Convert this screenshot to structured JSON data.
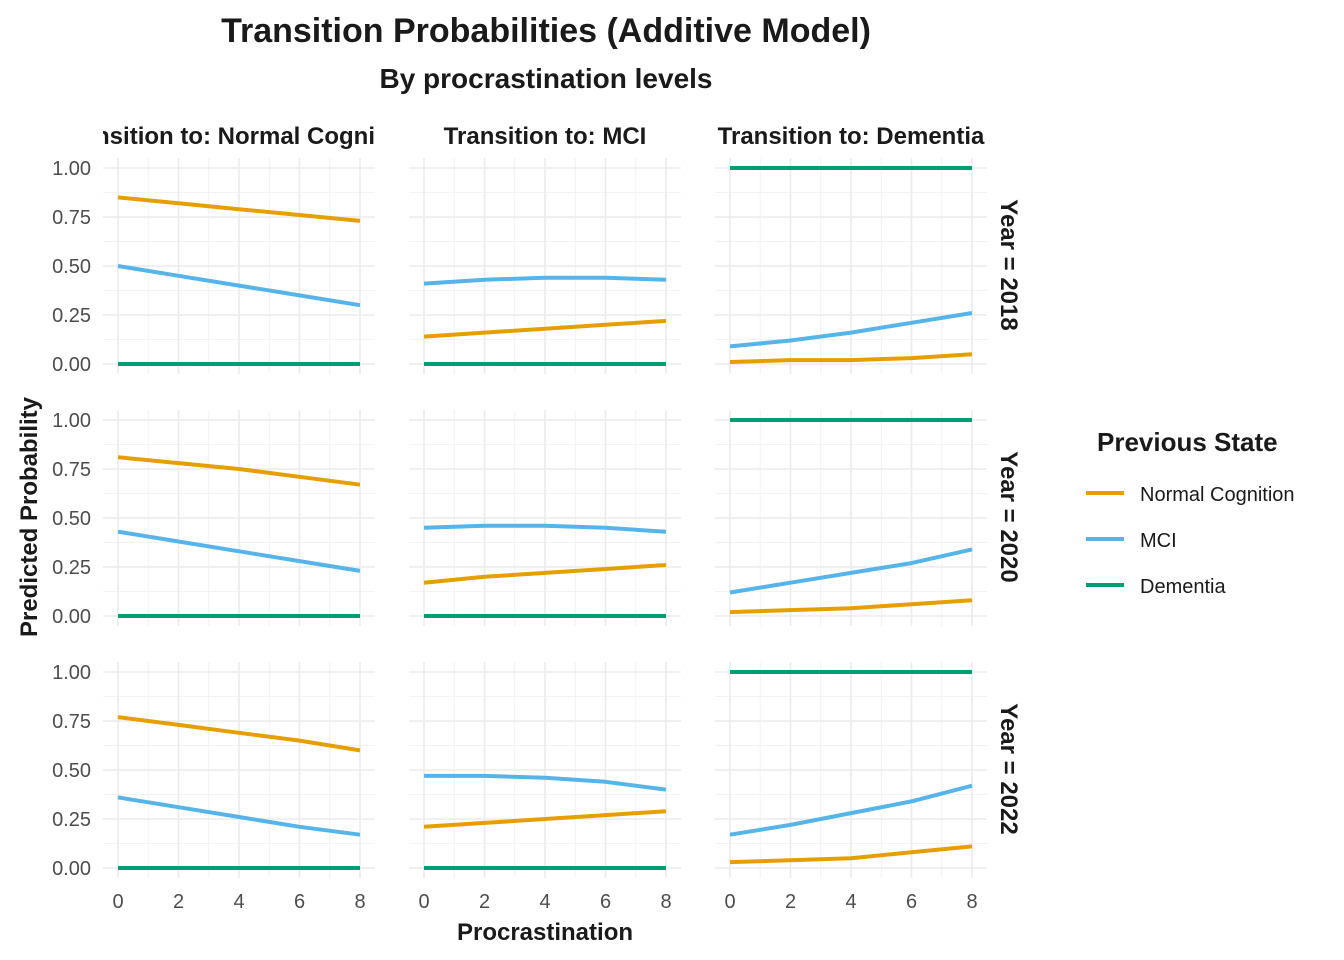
{
  "chart_data": {
    "type": "line",
    "title": "Transition Probabilities (Additive Model)",
    "subtitle": "By procrastination levels",
    "xlabel": "Procrastination",
    "ylabel": "Predicted Probability",
    "xlim": [
      0,
      8
    ],
    "ylim": [
      0,
      1
    ],
    "x_ticks": [
      "0",
      "2",
      "4",
      "6",
      "8"
    ],
    "y_ticks": [
      "0.00",
      "0.25",
      "0.50",
      "0.75",
      "1.00"
    ],
    "grid": true,
    "facet_columns": [
      "Transition to: Normal Cognition",
      "Transition to: MCI",
      "Transition to: Dementia"
    ],
    "facet_rows": [
      "Year = 2018",
      "Year = 2020",
      "Year = 2022"
    ],
    "legend": {
      "title": "Previous State",
      "position": "right",
      "items": [
        {
          "name": "Normal Cognition",
          "color": "#E69F00"
        },
        {
          "name": "MCI",
          "color": "#56B4E9"
        },
        {
          "name": "Dementia",
          "color": "#009E73"
        }
      ]
    },
    "x": [
      0,
      2,
      4,
      6,
      8
    ],
    "panels": [
      {
        "row": 0,
        "col": 0,
        "series": [
          {
            "name": "Normal Cognition",
            "values": [
              0.85,
              0.82,
              0.79,
              0.76,
              0.73
            ]
          },
          {
            "name": "MCI",
            "values": [
              0.5,
              0.45,
              0.4,
              0.35,
              0.3
            ]
          },
          {
            "name": "Dementia",
            "values": [
              0.0,
              0.0,
              0.0,
              0.0,
              0.0
            ]
          }
        ]
      },
      {
        "row": 0,
        "col": 1,
        "series": [
          {
            "name": "Normal Cognition",
            "values": [
              0.14,
              0.16,
              0.18,
              0.2,
              0.22
            ]
          },
          {
            "name": "MCI",
            "values": [
              0.41,
              0.43,
              0.44,
              0.44,
              0.43
            ]
          },
          {
            "name": "Dementia",
            "values": [
              0.0,
              0.0,
              0.0,
              0.0,
              0.0
            ]
          }
        ]
      },
      {
        "row": 0,
        "col": 2,
        "series": [
          {
            "name": "Normal Cognition",
            "values": [
              0.01,
              0.02,
              0.02,
              0.03,
              0.05
            ]
          },
          {
            "name": "MCI",
            "values": [
              0.09,
              0.12,
              0.16,
              0.21,
              0.26
            ]
          },
          {
            "name": "Dementia",
            "values": [
              1.0,
              1.0,
              1.0,
              1.0,
              1.0
            ]
          }
        ]
      },
      {
        "row": 1,
        "col": 0,
        "series": [
          {
            "name": "Normal Cognition",
            "values": [
              0.81,
              0.78,
              0.75,
              0.71,
              0.67
            ]
          },
          {
            "name": "MCI",
            "values": [
              0.43,
              0.38,
              0.33,
              0.28,
              0.23
            ]
          },
          {
            "name": "Dementia",
            "values": [
              0.0,
              0.0,
              0.0,
              0.0,
              0.0
            ]
          }
        ]
      },
      {
        "row": 1,
        "col": 1,
        "series": [
          {
            "name": "Normal Cognition",
            "values": [
              0.17,
              0.2,
              0.22,
              0.24,
              0.26
            ]
          },
          {
            "name": "MCI",
            "values": [
              0.45,
              0.46,
              0.46,
              0.45,
              0.43
            ]
          },
          {
            "name": "Dementia",
            "values": [
              0.0,
              0.0,
              0.0,
              0.0,
              0.0
            ]
          }
        ]
      },
      {
        "row": 1,
        "col": 2,
        "series": [
          {
            "name": "Normal Cognition",
            "values": [
              0.02,
              0.03,
              0.04,
              0.06,
              0.08
            ]
          },
          {
            "name": "MCI",
            "values": [
              0.12,
              0.17,
              0.22,
              0.27,
              0.34
            ]
          },
          {
            "name": "Dementia",
            "values": [
              1.0,
              1.0,
              1.0,
              1.0,
              1.0
            ]
          }
        ]
      },
      {
        "row": 2,
        "col": 0,
        "series": [
          {
            "name": "Normal Cognition",
            "values": [
              0.77,
              0.73,
              0.69,
              0.65,
              0.6
            ]
          },
          {
            "name": "MCI",
            "values": [
              0.36,
              0.31,
              0.26,
              0.21,
              0.17
            ]
          },
          {
            "name": "Dementia",
            "values": [
              0.0,
              0.0,
              0.0,
              0.0,
              0.0
            ]
          }
        ]
      },
      {
        "row": 2,
        "col": 1,
        "series": [
          {
            "name": "Normal Cognition",
            "values": [
              0.21,
              0.23,
              0.25,
              0.27,
              0.29
            ]
          },
          {
            "name": "MCI",
            "values": [
              0.47,
              0.47,
              0.46,
              0.44,
              0.4
            ]
          },
          {
            "name": "Dementia",
            "values": [
              0.0,
              0.0,
              0.0,
              0.0,
              0.0
            ]
          }
        ]
      },
      {
        "row": 2,
        "col": 2,
        "series": [
          {
            "name": "Normal Cognition",
            "values": [
              0.03,
              0.04,
              0.05,
              0.08,
              0.11
            ]
          },
          {
            "name": "MCI",
            "values": [
              0.17,
              0.22,
              0.28,
              0.34,
              0.42
            ]
          },
          {
            "name": "Dementia",
            "values": [
              1.0,
              1.0,
              1.0,
              1.0,
              1.0
            ]
          }
        ]
      }
    ]
  }
}
